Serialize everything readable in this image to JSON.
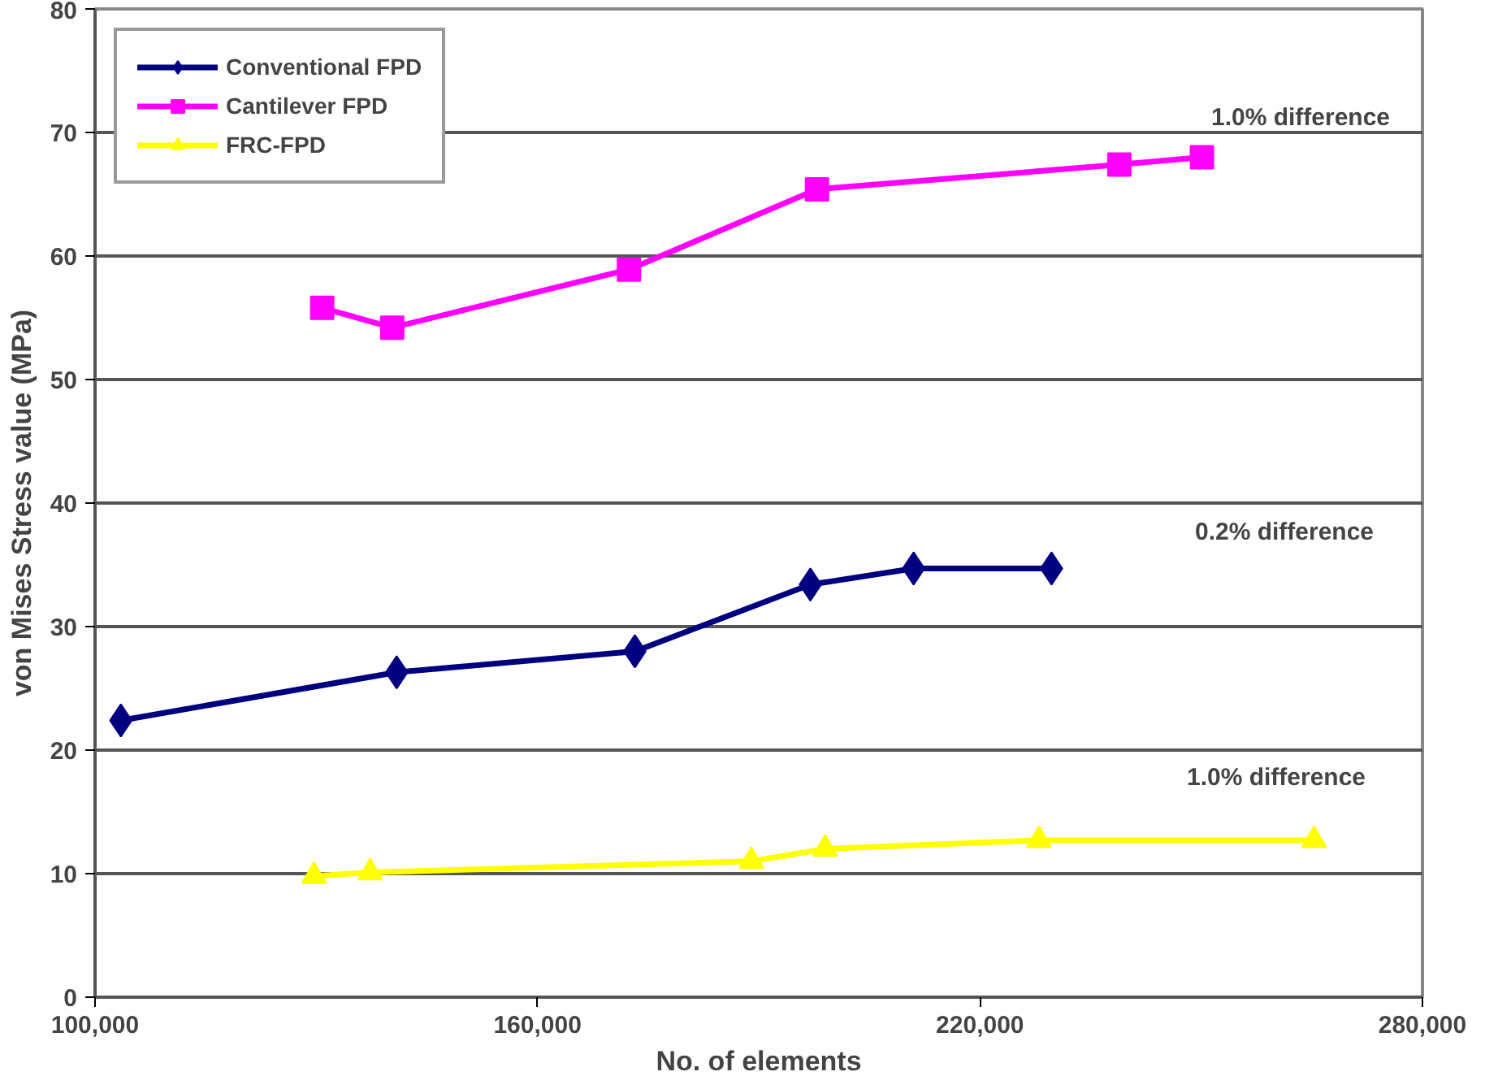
{
  "chart_data": {
    "type": "line",
    "xlabel": "No. of elements",
    "ylabel": "von Mises Stress value (MPa)",
    "xlim": [
      100000,
      280000
    ],
    "xticks": [
      {
        "value": 100000,
        "label": "100,000"
      },
      {
        "value": 160000,
        "label": "160,000"
      },
      {
        "value": 220000,
        "label": "220,000"
      },
      {
        "value": 280000,
        "label": "280,000"
      }
    ],
    "ylim": [
      0,
      80
    ],
    "yticks": [
      0,
      10,
      20,
      30,
      40,
      50,
      60,
      70,
      80
    ],
    "grid": "y",
    "legend": "top left",
    "line_style": "solid",
    "series": [
      {
        "name": "Conventional FPD",
        "color": "#000080",
        "marker": "diamond",
        "x": [
          103500,
          140900,
          173200,
          197000,
          211000,
          229700
        ],
        "values": [
          22.4,
          26.3,
          28.0,
          33.4,
          34.7,
          34.7
        ]
      },
      {
        "name": "Cantilever FPD",
        "color": "#ff00ff",
        "marker": "square",
        "x": [
          130800,
          140300,
          172400,
          197900,
          238900,
          250100
        ],
        "values": [
          55.8,
          54.2,
          58.9,
          65.4,
          67.4,
          68.0
        ]
      },
      {
        "name": "FRC-FPD",
        "color": "#ffff00",
        "marker": "triangle",
        "x": [
          129700,
          137300,
          189000,
          199000,
          228000,
          265300
        ],
        "values": [
          9.8,
          10.1,
          11.0,
          12.0,
          12.7,
          12.7
        ]
      }
    ],
    "annotations": [
      "1.0% difference",
      "0.2% difference",
      "1.0% difference"
    ]
  }
}
